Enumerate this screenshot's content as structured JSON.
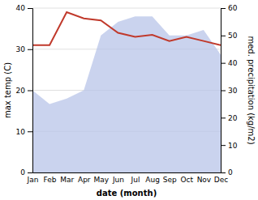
{
  "chart_data": {
    "type": "line",
    "x_label": "date (month)",
    "y_label": "max temp (C)",
    "y2_label": "med. precipitation (kg/m2)",
    "categories": [
      "Jan",
      "Feb",
      "Mar",
      "Apr",
      "May",
      "Jun",
      "Jul",
      "Aug",
      "Sep",
      "Oct",
      "Nov",
      "Dec"
    ],
    "series": [
      {
        "type": "area",
        "axis": "y2",
        "color": "#b8c4e8",
        "values": [
          30,
          25,
          27,
          30,
          50,
          55,
          57,
          57,
          50,
          50,
          52,
          43
        ]
      },
      {
        "type": "line",
        "color": "#c0392b",
        "values": [
          31,
          31,
          39,
          37.5,
          37,
          34,
          33,
          33.5,
          32,
          33,
          32,
          31
        ]
      }
    ],
    "ylim": [
      0,
      40
    ],
    "yticks": [
      0,
      10,
      20,
      30,
      40
    ],
    "y2lim": [
      0,
      60
    ],
    "y2ticks": [
      0,
      10,
      20,
      30,
      40,
      50,
      60
    ],
    "grid": true
  }
}
